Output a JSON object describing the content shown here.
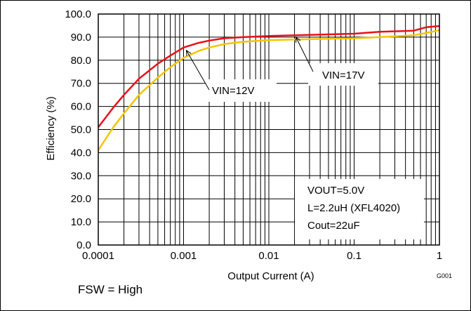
{
  "chart_data": {
    "type": "line",
    "title": "",
    "xlabel": "Output Current (A)",
    "ylabel": "Efficiency (%)",
    "x_scale": "log",
    "xlim": [
      0.0001,
      1
    ],
    "ylim": [
      0,
      100
    ],
    "x_ticks": [
      "0.0001",
      "0.001",
      "0.01",
      "0.1",
      "1"
    ],
    "y_ticks": [
      "0.0",
      "10.0",
      "20.0",
      "30.0",
      "40.0",
      "50.0",
      "60.0",
      "70.0",
      "80.0",
      "90.0",
      "100.0"
    ],
    "grid": true,
    "series": [
      {
        "name": "VIN=12V",
        "color": "#e8101a",
        "x": [
          0.0001,
          0.00015,
          0.0002,
          0.0003,
          0.0005,
          0.0007,
          0.001,
          0.0015,
          0.002,
          0.003,
          0.005,
          0.01,
          0.02,
          0.05,
          0.1,
          0.2,
          0.5,
          0.7,
          1
        ],
        "y": [
          51,
          59.5,
          65,
          72,
          78.5,
          82,
          85.5,
          87.5,
          88.5,
          89.5,
          90,
          90.5,
          90.8,
          91.2,
          91.5,
          92.3,
          92.8,
          94.3,
          94.8
        ]
      },
      {
        "name": "VIN=17V",
        "color": "#f5c400",
        "x": [
          0.0001,
          0.00015,
          0.0002,
          0.0003,
          0.0005,
          0.0007,
          0.001,
          0.0015,
          0.002,
          0.003,
          0.005,
          0.01,
          0.02,
          0.05,
          0.1,
          0.2,
          0.5,
          0.7,
          1
        ],
        "y": [
          41,
          51,
          57,
          65,
          72.5,
          77,
          81,
          84,
          85.5,
          87,
          88,
          88.7,
          89,
          89.3,
          89.5,
          90,
          90.8,
          91.8,
          93
        ]
      }
    ],
    "annotations": [
      {
        "text": "VIN=12V",
        "points_to": [
          0.001,
          85.5
        ]
      },
      {
        "text": "VIN=17V",
        "points_to": [
          0.02,
          90
        ]
      }
    ],
    "conditions": [
      "VOUT=5.0V",
      "L=2.2uH (XFL4020)",
      "Cout=22uF"
    ],
    "figure_id": "G001",
    "footnote": "FSW = High"
  }
}
